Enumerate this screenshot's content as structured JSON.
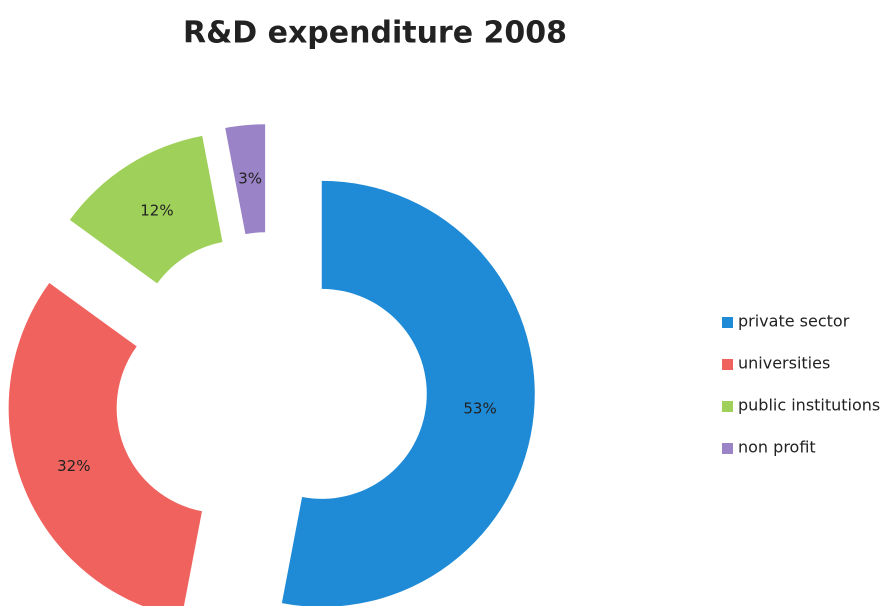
{
  "chart_data": {
    "type": "donut",
    "title": "R&D expenditure 2008",
    "categories": [
      "private sector",
      "universities",
      "public institutions",
      "non profit"
    ],
    "values": [
      53,
      32,
      12,
      3
    ],
    "value_labels": [
      "53%",
      "32%",
      "12%",
      "3%"
    ],
    "colors": [
      "#1f8ad6",
      "#f0625e",
      "#9fd05a",
      "#9a83c6"
    ],
    "exploded": true,
    "legend": "right"
  }
}
